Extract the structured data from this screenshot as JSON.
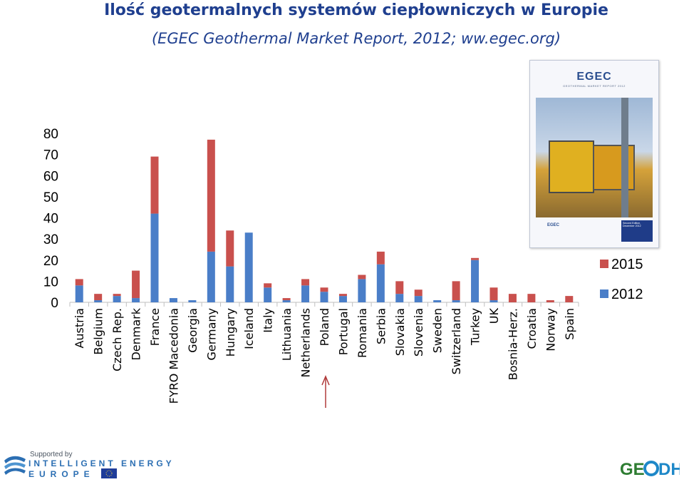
{
  "title": "Ilość geotermalnych systemów ciepłowniczych w Europie",
  "subtitle": "(EGEC Geothermal Market Report, 2012; ww.egec.org)",
  "cover": {
    "brand": "EGEC",
    "sub": "GEOTHERMAL MARKET REPORT 2012",
    "edition": "Second Edition, December 2012",
    "logo_text": "EGEC"
  },
  "footer": {
    "supported_by": "Supported by",
    "programme_line1": "INTELLIGENT ENERGY",
    "programme_line2": "EUROPE",
    "partner_logo": "GEODH"
  },
  "colors": {
    "s2012": "#4a7ec8",
    "s2015": "#c9504d",
    "title": "#1f3f8f",
    "text": "#000000",
    "arrow": "#b03a3a"
  },
  "chart_data": {
    "type": "bar",
    "stacked": true,
    "title": "",
    "xlabel": "",
    "ylabel": "",
    "ylim": [
      0,
      80
    ],
    "yticks": [
      0,
      10,
      20,
      30,
      40,
      50,
      60,
      70,
      80
    ],
    "grid": false,
    "legend_position": "right",
    "categories": [
      "Austria",
      "Belgium",
      "Czech Rep.",
      "Denmark",
      "France",
      "FYRO Macedonia",
      "Georgia",
      "Germany",
      "Hungary",
      "Iceland",
      "Italy",
      "Lithuania",
      "Netherlands",
      "Poland",
      "Portugal",
      "Romania",
      "Serbia",
      "Slovakia",
      "Slovenia",
      "Sweden",
      "Switzerland",
      "Turkey",
      "UK",
      "Bosnia-Herz.",
      "Croatia",
      "Norway",
      "Spain"
    ],
    "series": [
      {
        "name": "2012",
        "values": [
          8,
          1,
          3,
          2,
          42,
          2,
          1,
          24,
          17,
          33,
          7,
          1,
          8,
          5,
          3,
          11,
          18,
          4,
          3,
          1,
          1,
          20,
          1,
          0,
          0,
          0,
          0
        ]
      },
      {
        "name": "2015",
        "values": [
          3,
          3,
          1,
          13,
          27,
          0,
          0,
          53,
          17,
          0,
          2,
          1,
          3,
          2,
          1,
          2,
          6,
          6,
          3,
          0,
          9,
          1,
          6,
          4,
          4,
          1,
          3
        ]
      }
    ],
    "highlight": "Poland"
  }
}
